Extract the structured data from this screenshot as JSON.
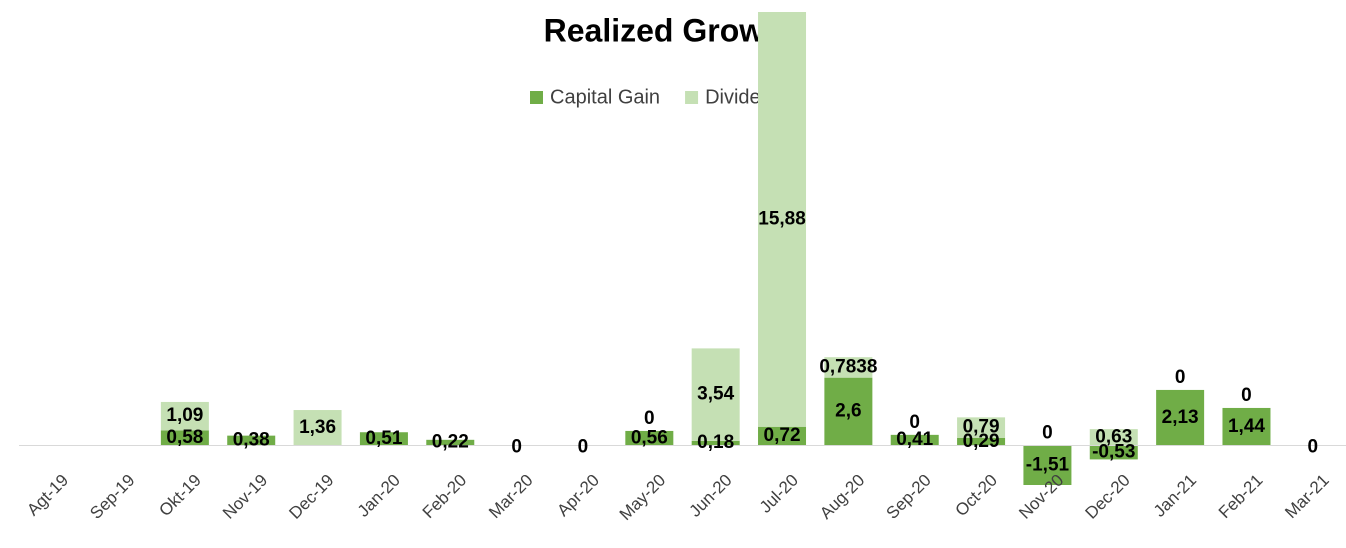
{
  "chart_data": {
    "type": "stacked_bar",
    "title": "Realized Growth",
    "categories": [
      "Agt-19",
      "Sep-19",
      "Okt-19",
      "Nov-19",
      "Dec-19",
      "Jan-20",
      "Feb-20",
      "Mar-20",
      "Apr-20",
      "May-20",
      "Jun-20",
      "Jul-20",
      "Aug-20",
      "Sep-20",
      "Oct-20",
      "Nov-20",
      "Dec-20",
      "Jan-21",
      "Feb-21",
      "Mar-21"
    ],
    "series": [
      {
        "name": "Capital Gain",
        "color": "#70ad47",
        "values": [
          null,
          null,
          0.58,
          0.38,
          null,
          0.51,
          0.22,
          0,
          0,
          0.56,
          0.18,
          0.72,
          2.6,
          0.41,
          0.29,
          -1.51,
          -0.53,
          2.13,
          1.44,
          0
        ],
        "value_labels": [
          null,
          null,
          "0,58",
          "0,38",
          null,
          "0,51",
          "0,22",
          "0",
          "0",
          "0,56",
          "0,18",
          "0,72",
          "2,6",
          "0,41",
          "0,29",
          "-1,51",
          "-0,53",
          "2,13",
          "1,44",
          "0"
        ]
      },
      {
        "name": "Dividend",
        "color": "#c5e0b4",
        "values": [
          null,
          null,
          1.09,
          null,
          1.36,
          null,
          null,
          null,
          null,
          0,
          3.54,
          15.88,
          0.7838,
          0,
          0.79,
          0,
          0.63,
          0,
          0,
          null
        ],
        "value_labels": [
          null,
          null,
          "1,09",
          null,
          "1,36",
          null,
          null,
          null,
          null,
          "0",
          "3,54",
          "15,88",
          "0,7838",
          "0",
          "0,79",
          "0",
          "0,63",
          "0",
          "0",
          null
        ]
      }
    ],
    "legend": "top"
  }
}
